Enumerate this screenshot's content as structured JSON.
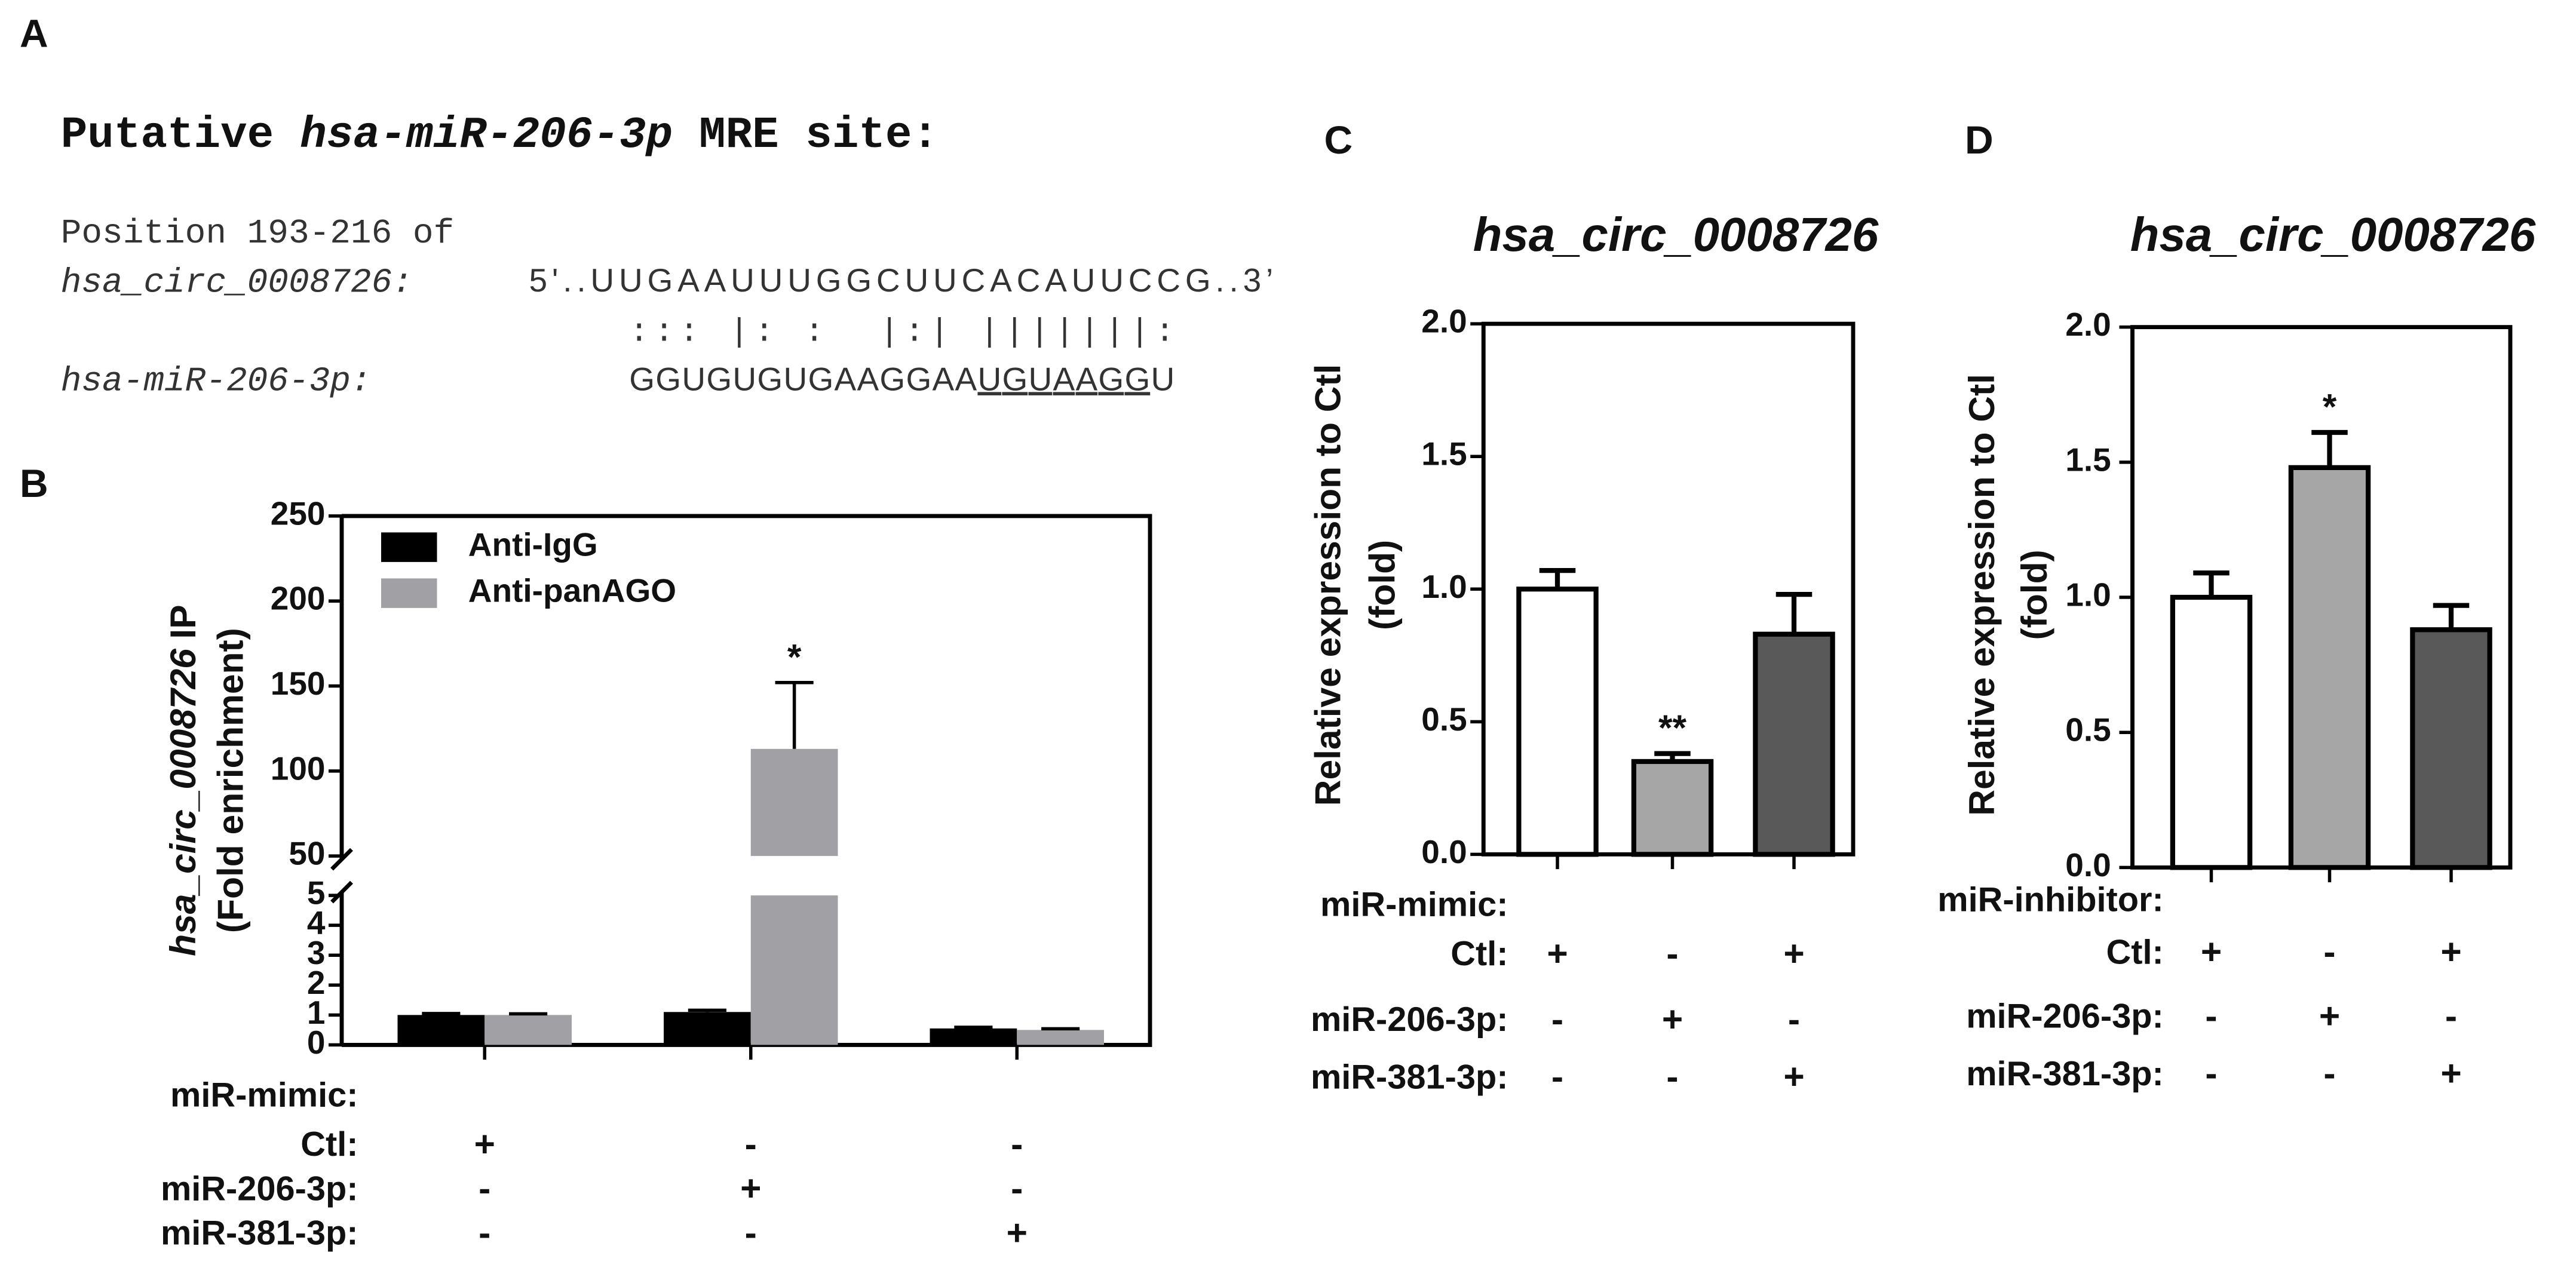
{
  "panel_a": {
    "label": "A",
    "title_prefix": "Putative",
    "title_mirna": "hsa-miR-206-3p",
    "title_suffix": "MRE site:",
    "position": "Position 193-216 of",
    "circ_name": "hsa_circ_0008726:",
    "circ_seq": "5'..UUGAAUUUGGCUUCACAUUCCG..3’",
    "pairing": "::: |: :  |:| |||||||:",
    "mir_name": "hsa-miR-206-3p:",
    "mir_seq_start": "GGUGUGUGAAGGAA",
    "mir_seq_seed": "UGUAAGG",
    "mir_seq_end": "U"
  },
  "chart_data": [
    {
      "type": "bar",
      "panel_label": "B",
      "ylabel_lines": [
        [
          {
            "text": "hsa_circ_0008726",
            "italic": true
          },
          {
            "text": "IP"
          }
        ],
        [
          {
            "text": "(Fold enrichment)"
          }
        ]
      ],
      "ylim": [
        0,
        250
      ],
      "y_break": [
        5,
        50
      ],
      "yticks": [
        0,
        1,
        2,
        3,
        4,
        5,
        50,
        100,
        150,
        200,
        250
      ],
      "legend": "upper left",
      "series": [
        {
          "name": "Anti-IgG",
          "color": "#000000",
          "values": [
            1.0,
            1.1,
            0.55
          ],
          "errors": [
            0.05,
            0.06,
            0.04
          ],
          "significance": [
            null,
            null,
            null
          ]
        },
        {
          "name": "Anti-panAGO",
          "color": "#a0a0a5",
          "values": [
            1.0,
            113,
            0.5
          ],
          "errors": [
            0.04,
            39,
            0.04
          ],
          "significance": [
            null,
            "*",
            null
          ]
        }
      ],
      "condition_title": "miR-mimic:",
      "conditions": [
        {
          "name": "Ctl:",
          "marks": [
            "+",
            "-",
            "-"
          ]
        },
        {
          "name": "miR-206-3p:",
          "marks": [
            "-",
            "+",
            "-"
          ]
        },
        {
          "name": "miR-381-3p:",
          "marks": [
            "-",
            "-",
            "+"
          ]
        }
      ]
    },
    {
      "type": "bar",
      "panel_label": "C",
      "title": "hsa_circ_0008726",
      "ylabel_lines": [
        [
          {
            "text": "Relative expression to Ctl"
          }
        ],
        [
          {
            "text": "(fold)"
          }
        ]
      ],
      "ylim": [
        0,
        2
      ],
      "yticks": [
        {
          "value": 0,
          "label": "0.0"
        },
        0.5,
        {
          "value": 1,
          "label": "1.0"
        },
        1.5,
        {
          "value": 2,
          "label": "2.0"
        }
      ],
      "values": [
        1.0,
        0.35,
        0.83
      ],
      "errors": [
        0.07,
        0.03,
        0.15
      ],
      "colors": [
        "#ffffff",
        "#a6a6a6",
        "#595959"
      ],
      "significance": [
        null,
        "**",
        null
      ],
      "condition_title": "miR-mimic:",
      "conditions": [
        {
          "name": "Ctl:",
          "marks": [
            "+",
            "-",
            "+"
          ]
        },
        {
          "name": "miR-206-3p:",
          "marks": [
            "-",
            "+",
            "-"
          ]
        },
        {
          "name": "miR-381-3p:",
          "marks": [
            "-",
            "-",
            "+"
          ]
        }
      ]
    },
    {
      "type": "bar",
      "panel_label": "D",
      "title": "hsa_circ_0008726",
      "ylabel_lines": [
        [
          {
            "text": "Relative expression to Ctl"
          }
        ],
        [
          {
            "text": "(fold)"
          }
        ]
      ],
      "ylim": [
        0,
        2
      ],
      "yticks": [
        {
          "value": 0,
          "label": "0.0"
        },
        0.5,
        {
          "value": 1,
          "label": "1.0"
        },
        1.5,
        {
          "value": 2,
          "label": "2.0"
        }
      ],
      "values": [
        1.0,
        1.48,
        0.88
      ],
      "errors": [
        0.09,
        0.13,
        0.09
      ],
      "colors": [
        "#ffffff",
        "#a6a6a6",
        "#595959"
      ],
      "significance": [
        null,
        "*",
        null
      ],
      "condition_title": "miR-inhibitor:",
      "conditions": [
        {
          "name": "Ctl:",
          "marks": [
            "+",
            "-",
            "+"
          ]
        },
        {
          "name": "miR-206-3p:",
          "marks": [
            "-",
            "+",
            "-"
          ]
        },
        {
          "name": "miR-381-3p:",
          "marks": [
            "-",
            "-",
            "+"
          ]
        }
      ]
    }
  ]
}
